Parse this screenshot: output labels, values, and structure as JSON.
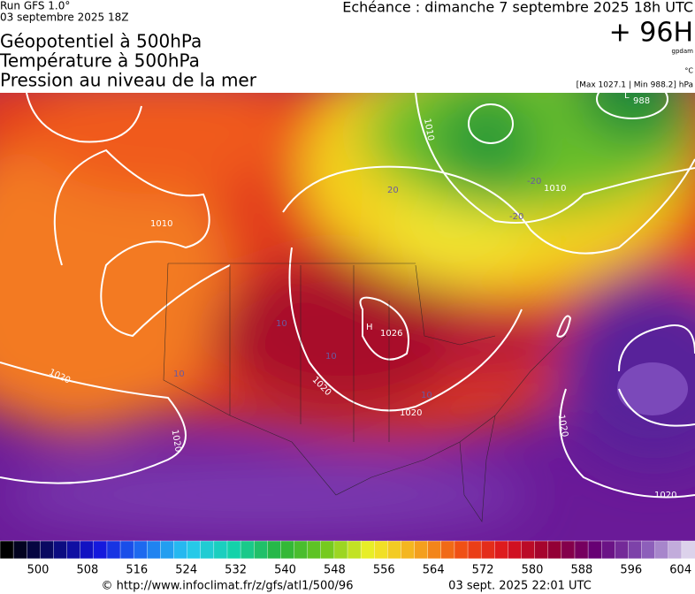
{
  "header": {
    "run": "Run GFS 1.0°",
    "run_date": "03 septembre 2025 18Z",
    "titles": [
      "Géopotentiel à 500hPa",
      "Température à 500hPa",
      "Pression au niveau de la mer"
    ],
    "valid_time": "Echéance : dimanche 7 septembre 2025 18h UTC",
    "lead": "+ 96H",
    "unit_geopotential": "gpdam",
    "unit_temperature": "°C",
    "pressure_range": "[Max 1027.1 | Min 988.2] hPa"
  },
  "map": {
    "labels": [
      "1010",
      "1010",
      "1010",
      "20",
      "-20",
      "-20",
      "L",
      "988",
      "H",
      "1026",
      "10",
      "10",
      "10",
      "10",
      "1020",
      "1020",
      "1020",
      "1020",
      "1020",
      "1020"
    ]
  },
  "colorbar": {
    "labels": [
      500,
      508,
      516,
      524,
      532,
      540,
      548,
      556,
      564,
      572,
      580,
      588,
      596,
      604
    ]
  },
  "footer": {
    "url": "© http://www.infoclimat.fr/z/gfs/atl1/500/96",
    "generated": "03 sept. 2025 22:01 UTC"
  }
}
